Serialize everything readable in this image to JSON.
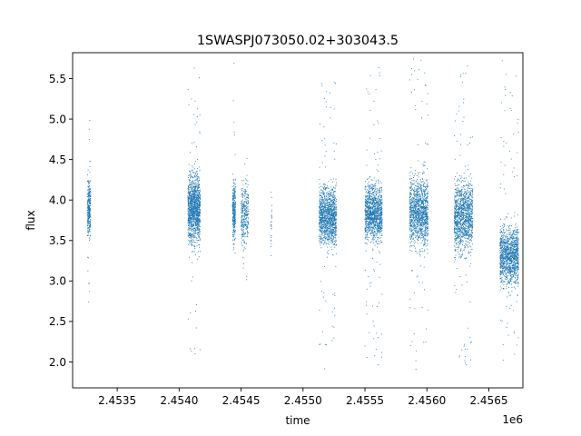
{
  "chart_data": {
    "type": "scatter",
    "title": "1SWASPJ073050.02+303043.5",
    "xlabel": "time",
    "ylabel": "flux",
    "x_offset_label": "1e6",
    "xlim": [
      2453140,
      2456775
    ],
    "ylim": [
      1.68,
      5.82
    ],
    "x_ticks": [
      2453500,
      2454000,
      2454500,
      2455000,
      2455500,
      2456000,
      2456500
    ],
    "x_tick_labels": [
      "2.4535",
      "2.4540",
      "2.4545",
      "2.4550",
      "2.4555",
      "2.4560",
      "2.4565"
    ],
    "y_ticks": [
      2.0,
      2.5,
      3.0,
      3.5,
      4.0,
      4.5,
      5.0,
      5.5
    ],
    "y_tick_labels": [
      "2.0",
      "2.5",
      "3.0",
      "3.5",
      "4.0",
      "4.5",
      "5.0",
      "5.5"
    ],
    "grid": false,
    "legend": "none",
    "marker_color": "#1f77b4",
    "seasons": [
      {
        "x_start": 2453260,
        "x_end": 2453285,
        "flux_center": 3.9,
        "flux_spread": 0.25,
        "flux_min": 2.7,
        "flux_max": 5.0,
        "density": "low"
      },
      {
        "x_start": 2454070,
        "x_end": 2454170,
        "flux_center": 3.9,
        "flux_spread": 0.3,
        "flux_min": 2.1,
        "flux_max": 5.65,
        "density": "high"
      },
      {
        "x_start": 2454430,
        "x_end": 2454455,
        "flux_center": 3.85,
        "flux_spread": 0.25,
        "flux_min": 2.2,
        "flux_max": 5.75,
        "density": "low"
      },
      {
        "x_start": 2454500,
        "x_end": 2454560,
        "flux_center": 3.85,
        "flux_spread": 0.25,
        "flux_min": 3.0,
        "flux_max": 4.6,
        "density": "low"
      },
      {
        "x_start": 2454740,
        "x_end": 2454750,
        "flux_center": 3.7,
        "flux_spread": 0.25,
        "flux_min": 3.2,
        "flux_max": 4.4,
        "density": "very-low"
      },
      {
        "x_start": 2455130,
        "x_end": 2455270,
        "flux_center": 3.8,
        "flux_spread": 0.25,
        "flux_min": 1.9,
        "flux_max": 5.5,
        "density": "high"
      },
      {
        "x_start": 2455500,
        "x_end": 2455640,
        "flux_center": 3.85,
        "flux_spread": 0.25,
        "flux_min": 1.95,
        "flux_max": 5.65,
        "density": "high"
      },
      {
        "x_start": 2455860,
        "x_end": 2456010,
        "flux_center": 3.85,
        "flux_spread": 0.3,
        "flux_min": 1.9,
        "flux_max": 5.75,
        "density": "high"
      },
      {
        "x_start": 2456220,
        "x_end": 2456370,
        "flux_center": 3.8,
        "flux_spread": 0.3,
        "flux_min": 1.9,
        "flux_max": 5.75,
        "density": "high"
      },
      {
        "x_start": 2456590,
        "x_end": 2456740,
        "flux_center": 3.3,
        "flux_spread": 0.25,
        "flux_min": 1.95,
        "flux_max": 5.75,
        "density": "high"
      }
    ]
  }
}
